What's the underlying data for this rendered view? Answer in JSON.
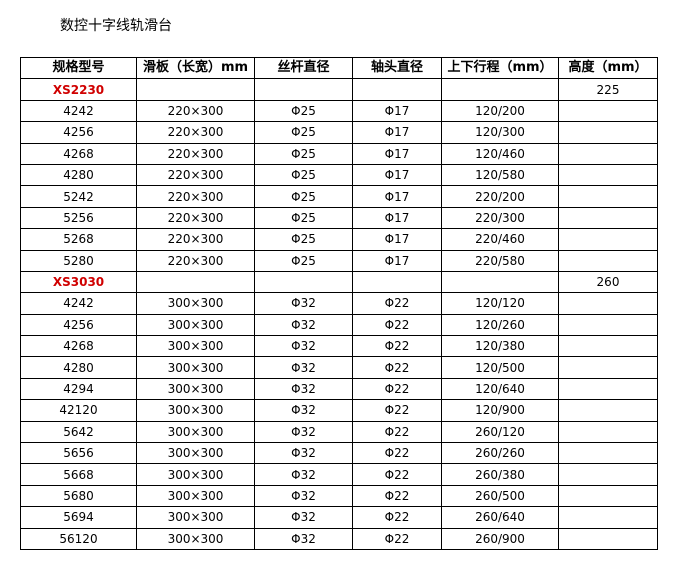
{
  "title": "数控十字线轨滑台",
  "headers": [
    "规格型号",
    "滑板（长宽）mm",
    "丝杆直径",
    "轴头直径",
    "上下行程（mm）",
    "高度（mm）"
  ],
  "groups": [
    {
      "series": "XS2230",
      "height": "225",
      "rows": [
        [
          "4242",
          "220×300",
          "Φ25",
          "Φ17",
          "120/200"
        ],
        [
          "4256",
          "220×300",
          "Φ25",
          "Φ17",
          "120/300"
        ],
        [
          "4268",
          "220×300",
          "Φ25",
          "Φ17",
          "120/460"
        ],
        [
          "4280",
          "220×300",
          "Φ25",
          "Φ17",
          "120/580"
        ],
        [
          "5242",
          "220×300",
          "Φ25",
          "Φ17",
          "220/200"
        ],
        [
          "5256",
          "220×300",
          "Φ25",
          "Φ17",
          "220/300"
        ],
        [
          "5268",
          "220×300",
          "Φ25",
          "Φ17",
          "220/460"
        ],
        [
          "5280",
          "220×300",
          "Φ25",
          "Φ17",
          "220/580"
        ]
      ]
    },
    {
      "series": "XS3030",
      "height": "260",
      "rows": [
        [
          "4242",
          "300×300",
          "Φ32",
          "Φ22",
          "120/120"
        ],
        [
          "4256",
          "300×300",
          "Φ32",
          "Φ22",
          "120/260"
        ],
        [
          "4268",
          "300×300",
          "Φ32",
          "Φ22",
          "120/380"
        ],
        [
          "4280",
          "300×300",
          "Φ32",
          "Φ22",
          "120/500"
        ],
        [
          "4294",
          "300×300",
          "Φ32",
          "Φ22",
          "120/640"
        ],
        [
          "42120",
          "300×300",
          "Φ32",
          "Φ22",
          "120/900"
        ],
        [
          "5642",
          "300×300",
          "Φ32",
          "Φ22",
          "260/120"
        ],
        [
          "5656",
          "300×300",
          "Φ32",
          "Φ22",
          "260/260"
        ],
        [
          "5668",
          "300×300",
          "Φ32",
          "Φ22",
          "260/380"
        ],
        [
          "5680",
          "300×300",
          "Φ32",
          "Φ22",
          "260/500"
        ],
        [
          "5694",
          "300×300",
          "Φ32",
          "Φ22",
          "260/640"
        ],
        [
          "56120",
          "300×300",
          "Φ32",
          "Φ22",
          "260/900"
        ]
      ]
    }
  ],
  "colors": {
    "series": "#d00000"
  }
}
